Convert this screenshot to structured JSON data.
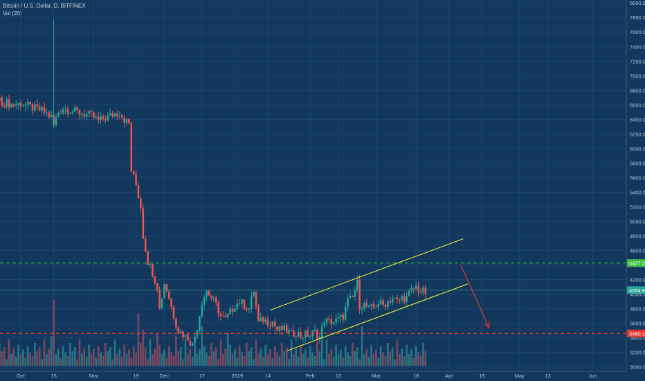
{
  "legend": {
    "title": "Bitcoin / U.S. Dollar, D, BITFINEX",
    "volume": "Vol (20)"
  },
  "colors": {
    "background": "#12385d",
    "up": "#26a69a",
    "down": "#ef5350",
    "up_volume": "#2b7d8a",
    "down_volume": "#8a4a5e",
    "channel": "#ffff33",
    "resistance": "#3fbf3f",
    "support": "#e53935",
    "arrow": "#e53935",
    "current_price": "#26a69a"
  },
  "chart_data": {
    "type": "candlestick",
    "symbol": "Bitcoin / U.S. Dollar, D, BITFINEX",
    "indicator": "Vol (20)",
    "x_ticks": [
      {
        "label": "Oct",
        "day": 0
      },
      {
        "label": "15",
        "day": 14
      },
      {
        "label": "Nov",
        "day": 31
      },
      {
        "label": "19",
        "day": 49
      },
      {
        "label": "Dec",
        "day": 61
      },
      {
        "label": "17",
        "day": 77
      },
      {
        "label": "2019",
        "day": 92
      },
      {
        "label": "14",
        "day": 105
      },
      {
        "label": "Feb",
        "day": 123
      },
      {
        "label": "13",
        "day": 135
      },
      {
        "label": "Mar",
        "day": 151
      },
      {
        "label": "18",
        "day": 168
      },
      {
        "label": "Apr",
        "day": 182
      },
      {
        "label": "15",
        "day": 196
      },
      {
        "label": "May",
        "day": 212
      },
      {
        "label": "13",
        "day": 224
      },
      {
        "label": "Jun",
        "day": 243
      }
    ],
    "y_ticks": [
      3000,
      3200,
      3400,
      3600,
      3800,
      4000,
      4200,
      4400,
      4600,
      4800,
      5000,
      5200,
      5400,
      5600,
      5800,
      6000,
      6200,
      6400,
      6600,
      6800,
      7000,
      7200,
      7400,
      7600,
      7800,
      8000
    ],
    "y_tick_labels": [
      "3000.0",
      "3200.0",
      "3400.0",
      "3600.0",
      "3800.0",
      "4000.0",
      "4200.0",
      "4400.0",
      "4600.0",
      "4800.0",
      "5000.0",
      "5200.0",
      "5400.0",
      "5600.0",
      "5800.0",
      "6000.0",
      "6200.0",
      "6400.0",
      "6600.0",
      "6800.0",
      "7000.0",
      "7200.0",
      "7400.0",
      "7600.0",
      "7800.0",
      "8000.0"
    ],
    "ylim": [
      2940,
      8040
    ],
    "price_path": [
      [
        -9,
        6650
      ],
      [
        -3,
        6600
      ],
      [
        0,
        6620
      ],
      [
        5,
        6560
      ],
      [
        9,
        6520
      ],
      [
        13,
        6430
      ],
      [
        14,
        6320
      ],
      [
        16,
        6500
      ],
      [
        18,
        6560
      ],
      [
        22,
        6520
      ],
      [
        26,
        6480
      ],
      [
        30,
        6450
      ],
      [
        33,
        6380
      ],
      [
        36,
        6420
      ],
      [
        40,
        6480
      ],
      [
        42,
        6500
      ],
      [
        44,
        6400
      ],
      [
        46,
        6340
      ],
      [
        47,
        5700
      ],
      [
        49,
        5500
      ],
      [
        51,
        5200
      ],
      [
        52,
        4800
      ],
      [
        54,
        4450
      ],
      [
        56,
        4300
      ],
      [
        58,
        4100
      ],
      [
        59,
        3800
      ],
      [
        61,
        4150
      ],
      [
        63,
        3950
      ],
      [
        65,
        3700
      ],
      [
        67,
        3500
      ],
      [
        69,
        3450
      ],
      [
        71,
        3400
      ],
      [
        73,
        3300
      ],
      [
        75,
        3550
      ],
      [
        77,
        3900
      ],
      [
        79,
        4050
      ],
      [
        81,
        3950
      ],
      [
        83,
        3850
      ],
      [
        85,
        3700
      ],
      [
        87,
        3650
      ],
      [
        89,
        3750
      ],
      [
        91,
        3850
      ],
      [
        93,
        3900
      ],
      [
        95,
        3850
      ],
      [
        97,
        3800
      ],
      [
        99,
        4050
      ],
      [
        101,
        3600
      ],
      [
        103,
        3650
      ],
      [
        105,
        3620
      ],
      [
        107,
        3620
      ],
      [
        109,
        3500
      ],
      [
        111,
        3520
      ],
      [
        113,
        3500
      ],
      [
        115,
        3450
      ],
      [
        117,
        3480
      ],
      [
        119,
        3420
      ],
      [
        121,
        3450
      ],
      [
        123,
        3430
      ],
      [
        125,
        3480
      ],
      [
        127,
        3400
      ],
      [
        129,
        3650
      ],
      [
        131,
        3620
      ],
      [
        133,
        3620
      ],
      [
        135,
        3650
      ],
      [
        137,
        3700
      ],
      [
        139,
        3900
      ],
      [
        141,
        3950
      ],
      [
        143,
        4150
      ],
      [
        144,
        3850
      ],
      [
        146,
        3850
      ],
      [
        148,
        3800
      ],
      [
        150,
        3820
      ],
      [
        152,
        3880
      ],
      [
        154,
        3850
      ],
      [
        156,
        3900
      ],
      [
        158,
        3950
      ],
      [
        160,
        3900
      ],
      [
        162,
        3950
      ],
      [
        164,
        3950
      ],
      [
        166,
        4050
      ],
      [
        168,
        4100
      ],
      [
        170,
        4040
      ],
      [
        172,
        4020
      ]
    ],
    "volumes_cyclic": [
      0.18,
      0.25,
      0.12,
      0.3,
      0.2,
      0.15,
      0.35,
      0.22,
      0.28,
      0.1,
      0.4,
      0.18,
      0.26,
      0.14,
      0.32
    ],
    "volume_spikes": [
      {
        "day": 14,
        "value": 1.0
      },
      {
        "day": 13,
        "value": 0.45
      },
      {
        "day": 50,
        "value": 0.8
      },
      {
        "day": 52,
        "value": 0.55
      },
      {
        "day": 58,
        "value": 0.5
      },
      {
        "day": 66,
        "value": 0.45
      },
      {
        "day": 77,
        "value": 0.6
      },
      {
        "day": 88,
        "value": 0.5
      },
      {
        "day": 111,
        "value": 0.35
      },
      {
        "day": 128,
        "value": 0.45
      },
      {
        "day": 145,
        "value": 0.6
      }
    ],
    "volume_note": "volume bars shown relative to the tallest bar (no volume axis printed)",
    "channel_upper": {
      "from": {
        "day": 106,
        "price": 3780
      },
      "to": {
        "day": 188,
        "price": 4760
      }
    },
    "channel_lower": {
      "from": {
        "day": 113,
        "price": 3220
      },
      "to": {
        "day": 190,
        "price": 4140
      }
    },
    "resistance_level": 4427.2,
    "support_level": 3460.1,
    "current_price": 4054.9,
    "projection_arrow": {
      "from": {
        "day": 187,
        "price": 4400
      },
      "to": {
        "day": 199,
        "price": 3540
      }
    },
    "level_labels": {
      "resistance": "4427.2",
      "support": "3460.1",
      "current": "4054.9"
    },
    "last_day": 172
  }
}
